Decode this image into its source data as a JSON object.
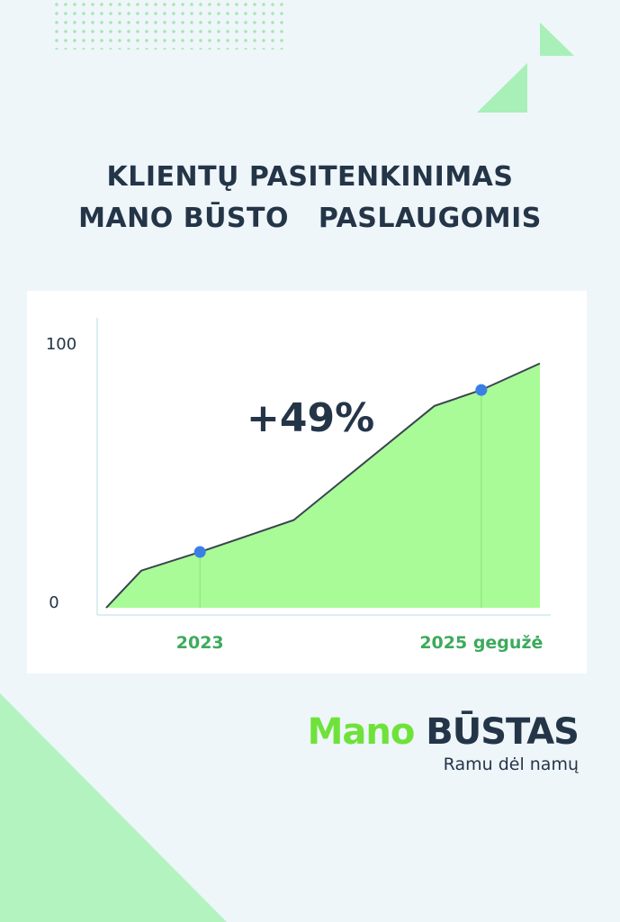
{
  "title": {
    "line1": "KLIENTŲ PASITENKINIMAS",
    "line2": "MANO BŪSTO   PASLAUGOMIS"
  },
  "colors": {
    "background": "#eef6fa",
    "fill": "#a8fb96",
    "line": "#3a4450",
    "marker": "#3b7fe6",
    "xlabel": "#3daa5c",
    "text": "#253548",
    "logo_green": "#6fe23a"
  },
  "chart_data": {
    "type": "area",
    "title": "",
    "xlabel": "",
    "ylabel": "",
    "ylim": [
      0,
      100
    ],
    "yticks": [
      "0",
      "100"
    ],
    "xticks": [
      {
        "x": 2023.0,
        "label": "2023"
      },
      {
        "x": 2025.4,
        "label": "2025 gegužė"
      }
    ],
    "x": [
      2022.2,
      2022.5,
      2023.0,
      2023.8,
      2025.0,
      2025.4,
      2025.9
    ],
    "values": [
      0,
      14,
      21,
      33,
      76,
      82,
      92
    ],
    "markers": [
      {
        "x": 2023.0,
        "y": 21
      },
      {
        "x": 2025.4,
        "y": 82
      }
    ],
    "annotation": "+49%",
    "grid": false
  },
  "logo": {
    "mano": "Mano",
    "bustas": "BŪSTAS",
    "tagline": "Ramu dėl namų"
  }
}
